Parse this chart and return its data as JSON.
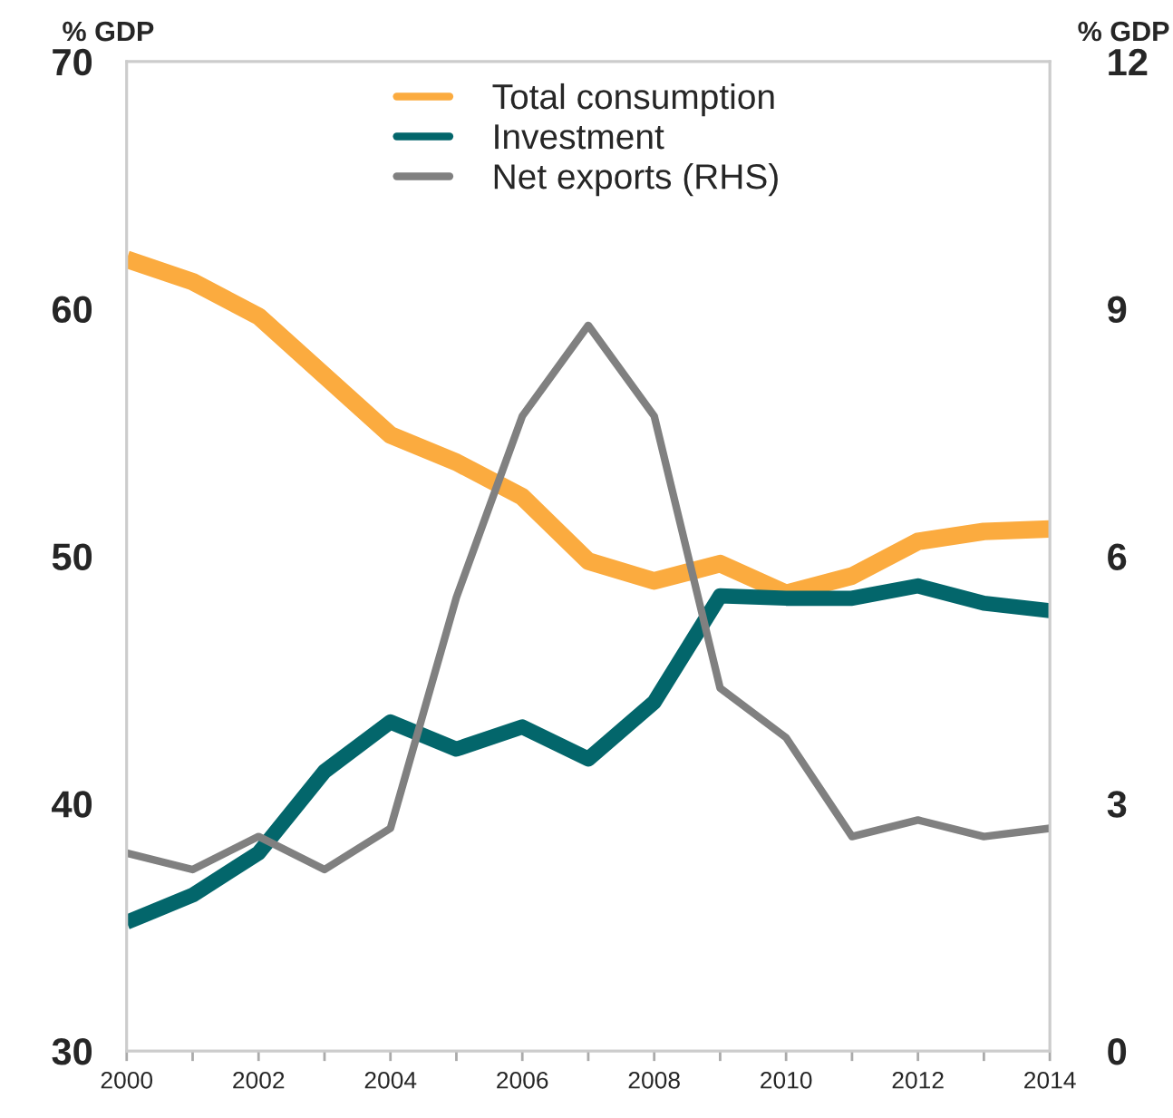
{
  "chart_data": {
    "type": "line",
    "ylabel": "% GDP",
    "y2label": "% GDP",
    "x": [
      2000,
      2001,
      2002,
      2003,
      2004,
      2005,
      2006,
      2007,
      2008,
      2009,
      2010,
      2011,
      2012,
      2013,
      2014
    ],
    "series": [
      {
        "name": "Total consumption",
        "color": "#fbab3f",
        "values": [
          62.0,
          61.1,
          59.7,
          57.3,
          54.9,
          53.8,
          52.4,
          49.8,
          49.0,
          49.7,
          48.5,
          49.2,
          50.6,
          51.0,
          51.1
        ]
      },
      {
        "name": "Investment",
        "color": "#03666b",
        "values": [
          35.2,
          36.3,
          38.0,
          41.3,
          43.3,
          42.2,
          43.1,
          41.8,
          44.1,
          48.4,
          48.3,
          48.3,
          48.8,
          48.1,
          47.8
        ]
      },
      {
        "name": "Net exports (RHS)",
        "color": "#808080",
        "axis": "y2",
        "values": [
          2.4,
          2.2,
          2.6,
          2.2,
          2.7,
          5.5,
          7.7,
          8.8,
          7.7,
          4.4,
          3.8,
          2.6,
          2.8,
          2.6,
          2.7
        ]
      }
    ],
    "xlim": [
      2000,
      2014
    ],
    "xticks": [
      2000,
      {
        "value": 2001,
        "label": null
      },
      2002,
      {
        "value": 2003,
        "label": null
      },
      2004,
      {
        "value": 2005,
        "label": null
      },
      2006,
      {
        "value": 2007,
        "label": null
      },
      2008,
      {
        "value": 2009,
        "label": null
      },
      2010,
      {
        "value": 2011,
        "label": null
      },
      2012,
      {
        "value": 2013,
        "label": null
      },
      2014
    ],
    "ylim": [
      30,
      70
    ],
    "yticks": [
      30,
      40,
      50,
      60,
      70
    ],
    "y2lim": [
      0,
      12
    ],
    "y2ticks": [
      0,
      3,
      6,
      9,
      12
    ],
    "grid": false,
    "legend": "top",
    "line_style": "solid",
    "marker": "none"
  }
}
